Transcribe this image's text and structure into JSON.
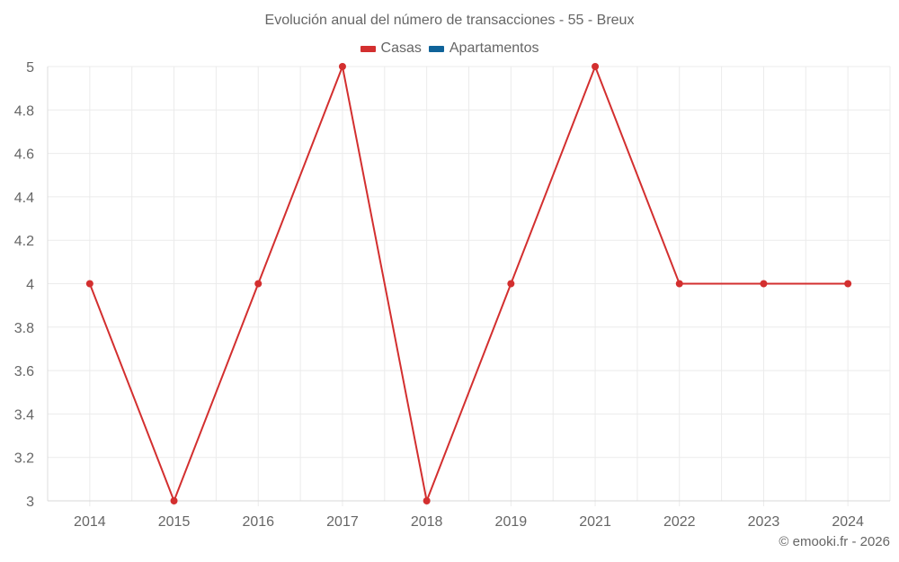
{
  "chart_data": {
    "type": "line",
    "title": "Evolución anual del número de transacciones - 55 - Breux",
    "xlabel": "",
    "ylabel": "",
    "categories": [
      "2014",
      "2015",
      "2016",
      "2017",
      "2018",
      "2019",
      "2021",
      "2022",
      "2023",
      "2024"
    ],
    "series": [
      {
        "name": "Casas",
        "color": "#d32f2f",
        "values": [
          4,
          3,
          4,
          5,
          3,
          4,
          5,
          4,
          4,
          4
        ]
      },
      {
        "name": "Apartamentos",
        "color": "#0f6399",
        "values": []
      }
    ],
    "ylim": [
      3,
      5
    ],
    "yticks": [
      "3",
      "3.2",
      "3.4",
      "3.6",
      "3.8",
      "4",
      "4.2",
      "4.4",
      "4.6",
      "4.8",
      "5"
    ],
    "grid": true,
    "legend_position": "top"
  },
  "legend": [
    {
      "label": "Casas",
      "color": "#d32f2f"
    },
    {
      "label": "Apartamentos",
      "color": "#0f6399"
    }
  ],
  "credit": "© emooki.fr - 2026"
}
